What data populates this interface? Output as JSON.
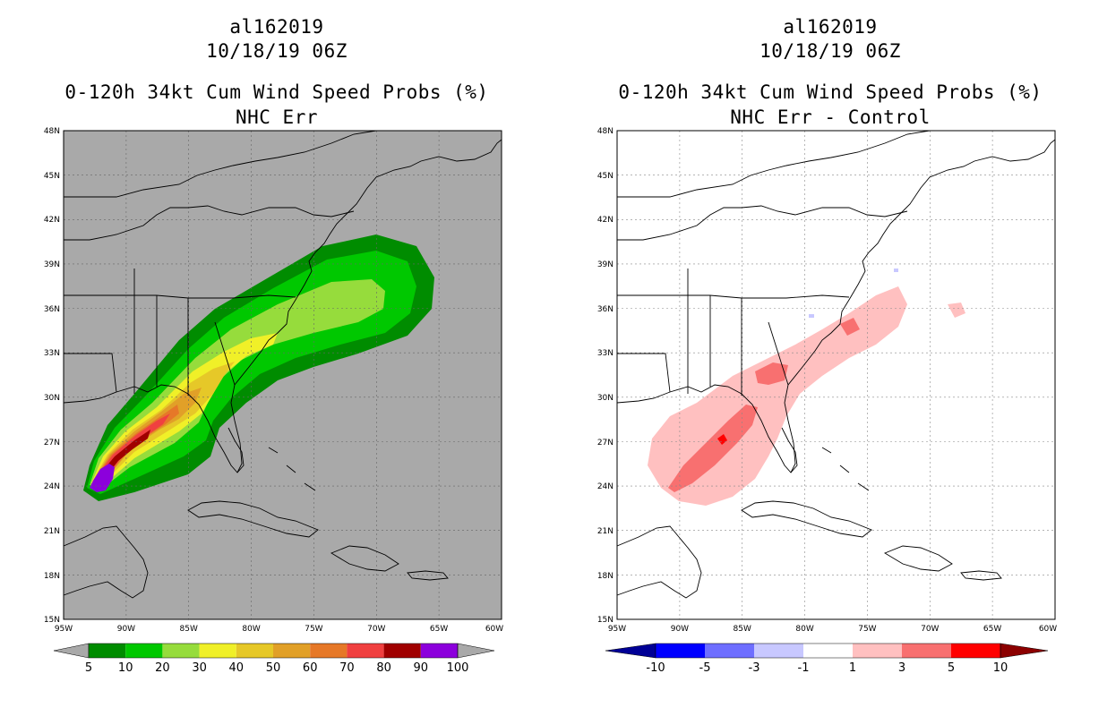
{
  "panels": [
    {
      "id": "left",
      "storm_id": "al162019",
      "datetime": "10/18/19 06Z",
      "product": "0-120h 34kt Cum Wind Speed Probs (%)",
      "subtitle": "NHC Err",
      "background": "#a9a9a9",
      "colorbar": {
        "labels": [
          "5",
          "10",
          "20",
          "30",
          "40",
          "50",
          "60",
          "70",
          "80",
          "90",
          "100"
        ],
        "colors": [
          "#008c00",
          "#00c800",
          "#96dc3c",
          "#f0f028",
          "#e6c828",
          "#e1a028",
          "#e67828",
          "#f04040",
          "#a00000",
          "#8c00dc"
        ],
        "end_left": "#a9a9a9",
        "end_right": "#a9a9a9"
      }
    },
    {
      "id": "right",
      "storm_id": "al162019",
      "datetime": "10/18/19 06Z",
      "product": "0-120h 34kt Cum Wind Speed Probs (%)",
      "subtitle": "NHC Err - Control",
      "background": "#ffffff",
      "colorbar": {
        "labels": [
          "-10",
          "-5",
          "-3",
          "-1",
          "1",
          "3",
          "5",
          "10"
        ],
        "colors": [
          "#0000ff",
          "#6e6eff",
          "#c8c8ff",
          "#ffffff",
          "#ffc0c0",
          "#f87070",
          "#ff0000"
        ],
        "end_left": "#000096",
        "end_right": "#8c0000"
      }
    }
  ],
  "axes": {
    "lat_labels": [
      "48N",
      "45N",
      "42N",
      "39N",
      "36N",
      "33N",
      "30N",
      "27N",
      "24N",
      "21N",
      "18N",
      "15N"
    ],
    "lon_labels": [
      "95W",
      "90W",
      "85W",
      "80W",
      "75W",
      "70W",
      "65W",
      "60W"
    ],
    "lat_range": [
      15,
      48
    ],
    "lon_range": [
      -95,
      -60
    ]
  }
}
